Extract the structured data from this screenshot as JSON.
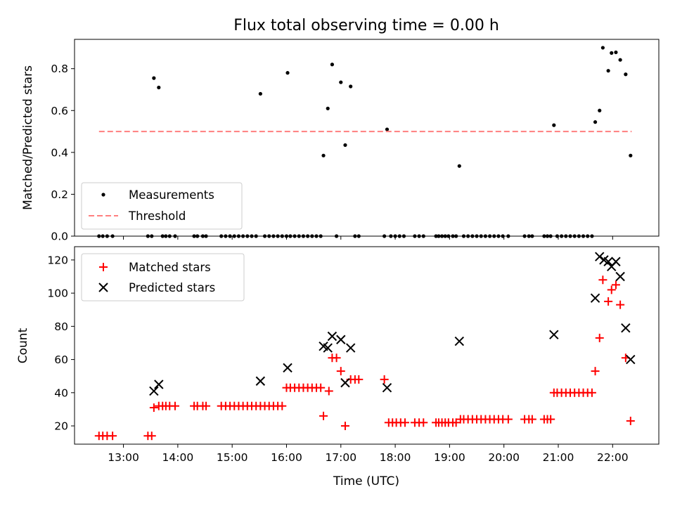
{
  "chart_data": [
    {
      "type": "scatter",
      "title": "Flux total observing time = 0.00 h",
      "xlabel": "",
      "ylabel": "Matched/Predicted stars",
      "xlim": [
        12.1,
        22.85
      ],
      "ylim": [
        0,
        0.94
      ],
      "yticks": [
        0.0,
        0.2,
        0.4,
        0.6,
        0.8
      ],
      "xticks_hours": [
        13,
        14,
        15,
        16,
        17,
        18,
        19,
        20,
        21,
        22
      ],
      "grid": false,
      "legend_placement": "lower-left",
      "threshold": {
        "name": "Threshold",
        "value": 0.5,
        "x_start": 12.55,
        "x_end": 22.35,
        "color": "#ff7f7f"
      },
      "series": [
        {
          "name": "Measurements",
          "color": "#000000",
          "marker": "dot",
          "points": [
            [
              12.55,
              0
            ],
            [
              12.62,
              0
            ],
            [
              12.7,
              0
            ],
            [
              12.8,
              0
            ],
            [
              13.45,
              0
            ],
            [
              13.52,
              0
            ],
            [
              13.56,
              0.755
            ],
            [
              13.65,
              0.71
            ],
            [
              13.72,
              0
            ],
            [
              13.78,
              0
            ],
            [
              13.85,
              0
            ],
            [
              13.95,
              0
            ],
            [
              14.3,
              0
            ],
            [
              14.36,
              0
            ],
            [
              14.46,
              0
            ],
            [
              14.52,
              0
            ],
            [
              14.8,
              0
            ],
            [
              14.88,
              0
            ],
            [
              14.96,
              0
            ],
            [
              15.04,
              0
            ],
            [
              15.12,
              0
            ],
            [
              15.2,
              0
            ],
            [
              15.28,
              0
            ],
            [
              15.36,
              0
            ],
            [
              15.44,
              0
            ],
            [
              15.52,
              0.68
            ],
            [
              15.6,
              0
            ],
            [
              15.68,
              0
            ],
            [
              15.76,
              0
            ],
            [
              15.84,
              0
            ],
            [
              15.92,
              0
            ],
            [
              16.0,
              0
            ],
            [
              16.02,
              0.78
            ],
            [
              16.07,
              0
            ],
            [
              16.15,
              0
            ],
            [
              16.23,
              0
            ],
            [
              16.31,
              0
            ],
            [
              16.39,
              0
            ],
            [
              16.47,
              0
            ],
            [
              16.55,
              0
            ],
            [
              16.63,
              0
            ],
            [
              16.68,
              0.385
            ],
            [
              16.76,
              0.61
            ],
            [
              16.84,
              0.82
            ],
            [
              16.92,
              0
            ],
            [
              17.0,
              0.735
            ],
            [
              17.08,
              0.435
            ],
            [
              17.18,
              0.715
            ],
            [
              17.26,
              0
            ],
            [
              17.33,
              0
            ],
            [
              17.8,
              0
            ],
            [
              17.85,
              0.51
            ],
            [
              17.92,
              0
            ],
            [
              18.0,
              0
            ],
            [
              18.08,
              0
            ],
            [
              18.16,
              0
            ],
            [
              18.36,
              0
            ],
            [
              18.44,
              0
            ],
            [
              18.52,
              0
            ],
            [
              18.75,
              0
            ],
            [
              18.8,
              0
            ],
            [
              18.86,
              0
            ],
            [
              18.92,
              0
            ],
            [
              18.98,
              0
            ],
            [
              19.06,
              0
            ],
            [
              19.12,
              0
            ],
            [
              19.18,
              0.335
            ],
            [
              19.26,
              0
            ],
            [
              19.34,
              0
            ],
            [
              19.42,
              0
            ],
            [
              19.5,
              0
            ],
            [
              19.58,
              0
            ],
            [
              19.66,
              0
            ],
            [
              19.74,
              0
            ],
            [
              19.82,
              0
            ],
            [
              19.9,
              0
            ],
            [
              19.98,
              0
            ],
            [
              20.08,
              0
            ],
            [
              20.38,
              0
            ],
            [
              20.46,
              0
            ],
            [
              20.52,
              0
            ],
            [
              20.74,
              0
            ],
            [
              20.8,
              0
            ],
            [
              20.86,
              0
            ],
            [
              20.92,
              0.53
            ],
            [
              20.98,
              0
            ],
            [
              21.06,
              0
            ],
            [
              21.14,
              0
            ],
            [
              21.22,
              0
            ],
            [
              21.3,
              0
            ],
            [
              21.38,
              0
            ],
            [
              21.46,
              0
            ],
            [
              21.54,
              0
            ],
            [
              21.62,
              0
            ],
            [
              21.68,
              0.545
            ],
            [
              21.76,
              0.6
            ],
            [
              21.82,
              0.9
            ],
            [
              21.92,
              0.79
            ],
            [
              21.98,
              0.875
            ],
            [
              22.06,
              0.878
            ],
            [
              22.14,
              0.842
            ],
            [
              22.24,
              0.773
            ],
            [
              22.33,
              0.385
            ]
          ]
        }
      ]
    },
    {
      "type": "scatter",
      "title": "",
      "xlabel": "Time (UTC)",
      "ylabel": "Count",
      "xlim": [
        12.1,
        22.85
      ],
      "ylim": [
        9,
        128
      ],
      "yticks": [
        20,
        40,
        60,
        80,
        100,
        120
      ],
      "xticks_hours": [
        13,
        14,
        15,
        16,
        17,
        18,
        19,
        20,
        21,
        22
      ],
      "xtick_labels": [
        "13:00",
        "14:00",
        "15:00",
        "16:00",
        "17:00",
        "18:00",
        "19:00",
        "20:00",
        "21:00",
        "22:00"
      ],
      "grid": false,
      "legend_placement": "upper-left",
      "series": [
        {
          "name": "Matched stars",
          "color": "#ff0000",
          "marker": "plus",
          "points": [
            [
              12.55,
              14
            ],
            [
              12.62,
              14
            ],
            [
              12.7,
              14
            ],
            [
              12.8,
              14
            ],
            [
              13.45,
              14
            ],
            [
              13.52,
              14
            ],
            [
              13.56,
              31
            ],
            [
              13.65,
              32
            ],
            [
              13.72,
              32
            ],
            [
              13.78,
              32
            ],
            [
              13.85,
              32
            ],
            [
              13.95,
              32
            ],
            [
              14.3,
              32
            ],
            [
              14.36,
              32
            ],
            [
              14.46,
              32
            ],
            [
              14.52,
              32
            ],
            [
              14.8,
              32
            ],
            [
              14.88,
              32
            ],
            [
              14.96,
              32
            ],
            [
              15.04,
              32
            ],
            [
              15.12,
              32
            ],
            [
              15.2,
              32
            ],
            [
              15.28,
              32
            ],
            [
              15.36,
              32
            ],
            [
              15.44,
              32
            ],
            [
              15.52,
              32
            ],
            [
              15.6,
              32
            ],
            [
              15.68,
              32
            ],
            [
              15.76,
              32
            ],
            [
              15.84,
              32
            ],
            [
              15.92,
              32
            ],
            [
              16.0,
              43
            ],
            [
              16.07,
              43
            ],
            [
              16.15,
              43
            ],
            [
              16.23,
              43
            ],
            [
              16.31,
              43
            ],
            [
              16.39,
              43
            ],
            [
              16.47,
              43
            ],
            [
              16.55,
              43
            ],
            [
              16.63,
              43
            ],
            [
              16.68,
              26
            ],
            [
              16.78,
              41
            ],
            [
              16.84,
              61
            ],
            [
              16.92,
              61
            ],
            [
              17.0,
              53
            ],
            [
              17.08,
              20
            ],
            [
              17.18,
              48
            ],
            [
              17.26,
              48
            ],
            [
              17.33,
              48
            ],
            [
              17.8,
              48
            ],
            [
              17.88,
              22
            ],
            [
              17.95,
              22
            ],
            [
              18.02,
              22
            ],
            [
              18.1,
              22
            ],
            [
              18.18,
              22
            ],
            [
              18.36,
              22
            ],
            [
              18.44,
              22
            ],
            [
              18.52,
              22
            ],
            [
              18.75,
              22
            ],
            [
              18.8,
              22
            ],
            [
              18.86,
              22
            ],
            [
              18.92,
              22
            ],
            [
              18.98,
              22
            ],
            [
              19.06,
              22
            ],
            [
              19.12,
              22
            ],
            [
              19.2,
              24
            ],
            [
              19.26,
              24
            ],
            [
              19.34,
              24
            ],
            [
              19.42,
              24
            ],
            [
              19.5,
              24
            ],
            [
              19.58,
              24
            ],
            [
              19.66,
              24
            ],
            [
              19.74,
              24
            ],
            [
              19.82,
              24
            ],
            [
              19.9,
              24
            ],
            [
              19.98,
              24
            ],
            [
              20.08,
              24
            ],
            [
              20.38,
              24
            ],
            [
              20.46,
              24
            ],
            [
              20.52,
              24
            ],
            [
              20.74,
              24
            ],
            [
              20.8,
              24
            ],
            [
              20.86,
              24
            ],
            [
              20.92,
              40
            ],
            [
              20.98,
              40
            ],
            [
              21.06,
              40
            ],
            [
              21.14,
              40
            ],
            [
              21.22,
              40
            ],
            [
              21.3,
              40
            ],
            [
              21.38,
              40
            ],
            [
              21.46,
              40
            ],
            [
              21.54,
              40
            ],
            [
              21.62,
              40
            ],
            [
              21.68,
              53
            ],
            [
              21.76,
              73
            ],
            [
              21.82,
              108
            ],
            [
              21.92,
              95
            ],
            [
              21.98,
              102
            ],
            [
              22.06,
              105
            ],
            [
              22.14,
              93
            ],
            [
              22.24,
              61
            ],
            [
              22.33,
              23
            ]
          ]
        },
        {
          "name": "Predicted stars",
          "color": "#000000",
          "marker": "x",
          "points": [
            [
              13.56,
              41
            ],
            [
              13.65,
              45
            ],
            [
              15.52,
              47
            ],
            [
              16.02,
              55
            ],
            [
              16.68,
              68
            ],
            [
              16.76,
              67
            ],
            [
              16.84,
              74
            ],
            [
              17.0,
              72
            ],
            [
              17.08,
              46
            ],
            [
              17.18,
              67
            ],
            [
              17.85,
              43
            ],
            [
              19.18,
              71
            ],
            [
              20.92,
              75
            ],
            [
              21.68,
              97
            ],
            [
              21.76,
              122
            ],
            [
              21.84,
              120
            ],
            [
              21.92,
              119
            ],
            [
              21.98,
              116
            ],
            [
              22.06,
              119
            ],
            [
              22.14,
              110
            ],
            [
              22.24,
              79
            ],
            [
              22.33,
              60
            ]
          ]
        }
      ]
    }
  ]
}
